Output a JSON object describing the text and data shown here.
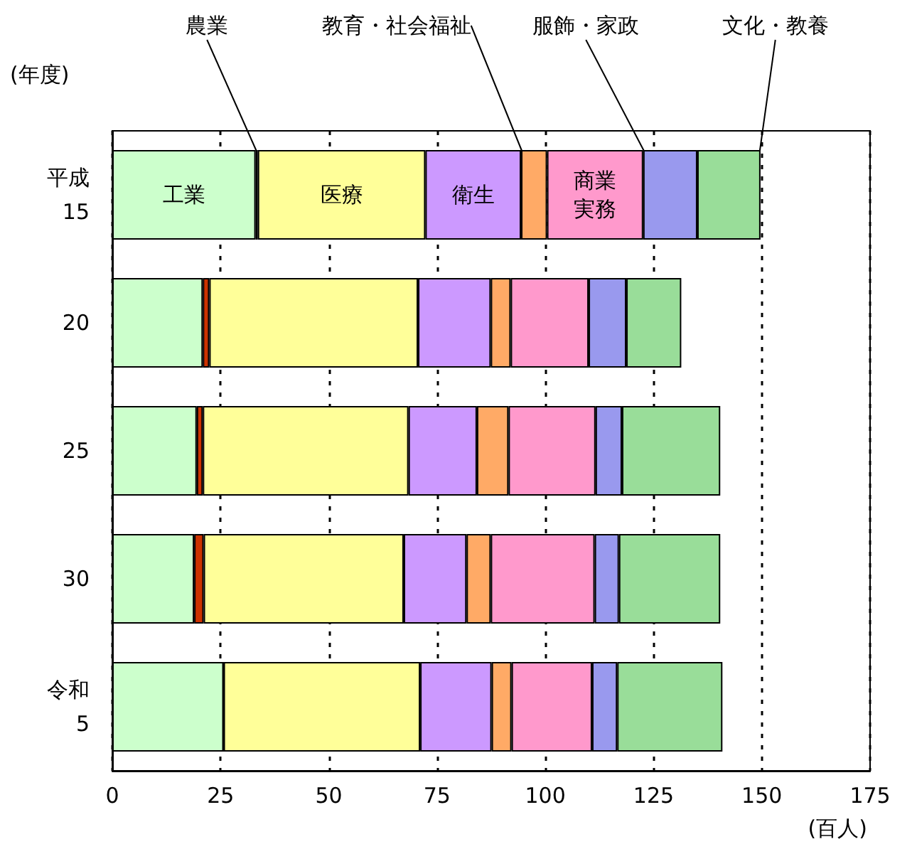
{
  "chart_data": {
    "type": "bar",
    "orientation": "horizontal",
    "stacked": true,
    "ylabel": "(年度)",
    "xlabel": "(百人)",
    "categories": [
      "平成\n15",
      "20",
      "25",
      "30",
      "令和\n5"
    ],
    "xlim": [
      0,
      175
    ],
    "xticks": [
      0,
      25,
      50,
      75,
      100,
      125,
      150,
      175
    ],
    "grid": "x",
    "series": [
      {
        "name": "工業",
        "color": "#ccffcc",
        "values": [
          33.1,
          20.9,
          19.5,
          18.9,
          25.7
        ]
      },
      {
        "name": "農業",
        "color": "#cc3300",
        "values": [
          0.5,
          1.5,
          1.4,
          2.2,
          0
        ]
      },
      {
        "name": "医療",
        "color": "#ffff99",
        "values": [
          38.7,
          48.2,
          47.5,
          46.2,
          45.4
        ]
      },
      {
        "name": "衛生",
        "color": "#cc99ff",
        "values": [
          22.1,
          16.8,
          15.8,
          14.5,
          16.5
        ]
      },
      {
        "name": "教育・社会福祉",
        "color": "#ffaa66",
        "values": [
          6.0,
          4.6,
          7.3,
          5.6,
          4.6
        ]
      },
      {
        "name": "商業実務",
        "color": "#ff99cc",
        "values": [
          22.2,
          18.0,
          20.1,
          24.0,
          18.6
        ]
      },
      {
        "name": "服飾・家政",
        "color": "#9999ee",
        "values": [
          12.5,
          8.7,
          6.1,
          5.6,
          5.8
        ]
      },
      {
        "name": "文化・教養",
        "color": "#99dd99",
        "values": [
          14.6,
          12.7,
          22.7,
          23.4,
          24.3
        ]
      }
    ]
  }
}
